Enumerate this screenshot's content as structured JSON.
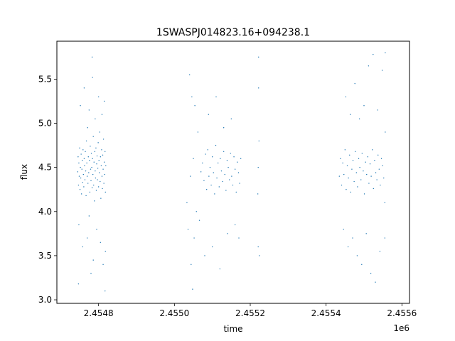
{
  "chart_data": {
    "type": "scatter",
    "title": "1SWASPJ014823.16+094238.1",
    "xlabel": "time",
    "ylabel": "flux",
    "x_offset_label": "1e6",
    "xlim": [
      2454690,
      2455620
    ],
    "ylim": [
      2.96,
      5.93
    ],
    "x_ticks": [
      2454800,
      2455000,
      2455200,
      2455400,
      2455600
    ],
    "x_tick_labels": [
      "2.4548",
      "2.4550",
      "2.4552",
      "2.4554",
      "2.4556"
    ],
    "y_ticks": [
      3.0,
      3.5,
      4.0,
      4.5,
      5.0,
      5.5
    ],
    "y_tick_labels": [
      "3.0",
      "3.5",
      "4.0",
      "4.5",
      "5.0",
      "5.5"
    ],
    "marker_color": "#1f77b4",
    "grid": false,
    "legend": "none",
    "series": [
      {
        "points": [
          [
            2454745,
            4.45
          ],
          [
            2454746,
            4.62
          ],
          [
            2454747,
            4.3
          ],
          [
            2454748,
            4.55
          ],
          [
            2454749,
            4.4
          ],
          [
            2454750,
            4.72
          ],
          [
            2454751,
            4.25
          ],
          [
            2454752,
            4.5
          ],
          [
            2454753,
            4.38
          ],
          [
            2454754,
            4.65
          ],
          [
            2454755,
            4.2
          ],
          [
            2454756,
            4.48
          ],
          [
            2454757,
            4.58
          ],
          [
            2454758,
            4.33
          ],
          [
            2454759,
            4.7
          ],
          [
            2454760,
            4.42
          ],
          [
            2454761,
            4.28
          ],
          [
            2454762,
            4.6
          ],
          [
            2454763,
            4.52
          ],
          [
            2454764,
            4.36
          ],
          [
            2454765,
            4.68
          ],
          [
            2454766,
            4.46
          ],
          [
            2454767,
            4.18
          ],
          [
            2454768,
            4.8
          ],
          [
            2454769,
            4.55
          ],
          [
            2454770,
            4.4
          ],
          [
            2454771,
            4.95
          ],
          [
            2454772,
            4.32
          ],
          [
            2454773,
            4.62
          ],
          [
            2454774,
            4.44
          ],
          [
            2454775,
            3.95
          ],
          [
            2454776,
            4.58
          ],
          [
            2454777,
            4.22
          ],
          [
            2454778,
            4.74
          ],
          [
            2454779,
            4.48
          ],
          [
            2454780,
            4.35
          ],
          [
            2454781,
            4.66
          ],
          [
            2454782,
            4.5
          ],
          [
            2454783,
            4.27
          ],
          [
            2454784,
            4.6
          ],
          [
            2454785,
            4.42
          ],
          [
            2454786,
            4.85
          ],
          [
            2454787,
            4.3
          ],
          [
            2454788,
            4.56
          ],
          [
            2454789,
            4.12
          ],
          [
            2454790,
            4.68
          ],
          [
            2454791,
            4.46
          ],
          [
            2454792,
            4.38
          ],
          [
            2454793,
            4.72
          ],
          [
            2454794,
            4.24
          ],
          [
            2454795,
            4.54
          ],
          [
            2454796,
            4.63
          ],
          [
            2454797,
            4.36
          ],
          [
            2454798,
            4.49
          ],
          [
            2454799,
            4.78
          ],
          [
            2454800,
            4.28
          ],
          [
            2454801,
            4.58
          ],
          [
            2454802,
            4.44
          ],
          [
            2454803,
            4.9
          ],
          [
            2454804,
            4.34
          ],
          [
            2454805,
            4.62
          ],
          [
            2454806,
            4.15
          ],
          [
            2454807,
            4.52
          ],
          [
            2454808,
            4.7
          ],
          [
            2454809,
            4.4
          ],
          [
            2454810,
            4.26
          ],
          [
            2454811,
            4.64
          ],
          [
            2454812,
            4.48
          ],
          [
            2454813,
            4.82
          ],
          [
            2454814,
            4.32
          ],
          [
            2454815,
            4.56
          ],
          [
            2454816,
            4.42
          ],
          [
            2454817,
            4.68
          ],
          [
            2454818,
            4.22
          ],
          [
            2454819,
            4.52
          ],
          [
            2454748,
            3.85
          ],
          [
            2454752,
            5.2
          ],
          [
            2454758,
            3.6
          ],
          [
            2454762,
            5.4
          ],
          [
            2454770,
            3.7
          ],
          [
            2454775,
            5.15
          ],
          [
            2454780,
            3.3
          ],
          [
            2454783,
            5.75
          ],
          [
            2454786,
            3.45
          ],
          [
            2454791,
            5.05
          ],
          [
            2454795,
            3.8
          ],
          [
            2454800,
            5.3
          ],
          [
            2454805,
            3.65
          ],
          [
            2454809,
            5.1
          ],
          [
            2454812,
            3.4
          ],
          [
            2454815,
            5.25
          ],
          [
            2454818,
            3.55
          ],
          [
            2454747,
            3.18
          ],
          [
            2454817,
            3.1
          ],
          [
            2454784,
            5.52
          ],
          [
            2455033,
            4.1
          ],
          [
            2455036,
            3.8
          ],
          [
            2455040,
            5.55
          ],
          [
            2455042,
            4.4
          ],
          [
            2455044,
            3.4
          ],
          [
            2455046,
            5.3
          ],
          [
            2455048,
            3.12
          ],
          [
            2455050,
            4.6
          ],
          [
            2455052,
            3.7
          ],
          [
            2455054,
            5.2
          ],
          [
            2455058,
            4.0
          ],
          [
            2455062,
            4.9
          ],
          [
            2455066,
            3.9
          ],
          [
            2455070,
            4.45
          ],
          [
            2455074,
            4.55
          ],
          [
            2455078,
            4.35
          ],
          [
            2455082,
            4.65
          ],
          [
            2455085,
            4.25
          ],
          [
            2455088,
            4.7
          ],
          [
            2455091,
            4.4
          ],
          [
            2455094,
            4.5
          ],
          [
            2455097,
            4.3
          ],
          [
            2455100,
            4.62
          ],
          [
            2455103,
            4.44
          ],
          [
            2455106,
            4.2
          ],
          [
            2455109,
            4.75
          ],
          [
            2455112,
            4.38
          ],
          [
            2455115,
            4.55
          ],
          [
            2455118,
            4.28
          ],
          [
            2455121,
            4.6
          ],
          [
            2455124,
            4.46
          ],
          [
            2455127,
            4.34
          ],
          [
            2455130,
            4.68
          ],
          [
            2455133,
            4.42
          ],
          [
            2455136,
            4.24
          ],
          [
            2455139,
            4.58
          ],
          [
            2455142,
            4.5
          ],
          [
            2455145,
            4.36
          ],
          [
            2455148,
            4.66
          ],
          [
            2455151,
            4.4
          ],
          [
            2455154,
            4.3
          ],
          [
            2455157,
            4.62
          ],
          [
            2455160,
            4.48
          ],
          [
            2455163,
            4.22
          ],
          [
            2455166,
            4.56
          ],
          [
            2455169,
            4.44
          ],
          [
            2455172,
            4.32
          ],
          [
            2455175,
            4.6
          ],
          [
            2455080,
            3.5
          ],
          [
            2455090,
            5.1
          ],
          [
            2455100,
            3.6
          ],
          [
            2455110,
            5.3
          ],
          [
            2455120,
            3.35
          ],
          [
            2455130,
            4.95
          ],
          [
            2455140,
            3.75
          ],
          [
            2455150,
            5.05
          ],
          [
            2455160,
            3.85
          ],
          [
            2455170,
            3.7
          ],
          [
            2455220,
            4.2
          ],
          [
            2455221,
            3.6
          ],
          [
            2455222,
            5.4
          ],
          [
            2455223,
            4.8
          ],
          [
            2455224,
            3.5
          ],
          [
            2455222,
            5.75
          ],
          [
            2455221,
            4.5
          ],
          [
            2455435,
            4.4
          ],
          [
            2455438,
            4.6
          ],
          [
            2455441,
            4.3
          ],
          [
            2455444,
            4.55
          ],
          [
            2455447,
            4.42
          ],
          [
            2455450,
            4.7
          ],
          [
            2455453,
            4.25
          ],
          [
            2455456,
            4.52
          ],
          [
            2455459,
            4.38
          ],
          [
            2455462,
            4.64
          ],
          [
            2455465,
            4.22
          ],
          [
            2455468,
            4.48
          ],
          [
            2455471,
            4.58
          ],
          [
            2455474,
            4.34
          ],
          [
            2455477,
            4.68
          ],
          [
            2455480,
            4.44
          ],
          [
            2455483,
            4.28
          ],
          [
            2455486,
            4.6
          ],
          [
            2455489,
            4.5
          ],
          [
            2455492,
            4.36
          ],
          [
            2455495,
            4.66
          ],
          [
            2455498,
            4.46
          ],
          [
            2455501,
            4.2
          ],
          [
            2455504,
            4.56
          ],
          [
            2455507,
            4.42
          ],
          [
            2455510,
            4.62
          ],
          [
            2455513,
            4.32
          ],
          [
            2455516,
            4.54
          ],
          [
            2455519,
            4.4
          ],
          [
            2455522,
            4.7
          ],
          [
            2455525,
            4.26
          ],
          [
            2455528,
            4.58
          ],
          [
            2455531,
            4.44
          ],
          [
            2455534,
            4.36
          ],
          [
            2455537,
            4.64
          ],
          [
            2455540,
            4.48
          ],
          [
            2455543,
            4.3
          ],
          [
            2455546,
            4.6
          ],
          [
            2455549,
            4.52
          ],
          [
            2455552,
            4.38
          ],
          [
            2455446,
            3.8
          ],
          [
            2455452,
            5.3
          ],
          [
            2455458,
            3.6
          ],
          [
            2455464,
            5.1
          ],
          [
            2455470,
            3.7
          ],
          [
            2455476,
            5.45
          ],
          [
            2455482,
            3.5
          ],
          [
            2455488,
            5.05
          ],
          [
            2455494,
            3.4
          ],
          [
            2455500,
            5.2
          ],
          [
            2455506,
            3.75
          ],
          [
            2455512,
            5.65
          ],
          [
            2455518,
            3.3
          ],
          [
            2455524,
            5.78
          ],
          [
            2455530,
            3.2
          ],
          [
            2455536,
            5.15
          ],
          [
            2455542,
            3.55
          ],
          [
            2455548,
            5.6
          ],
          [
            2455555,
            4.1
          ],
          [
            2455556,
            5.8
          ],
          [
            2455555,
            3.7
          ],
          [
            2455556,
            4.9
          ]
        ]
      }
    ]
  }
}
